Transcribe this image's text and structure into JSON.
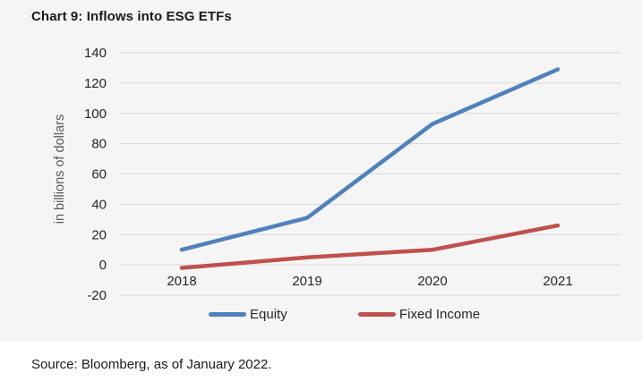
{
  "title": "Chart 9: Inflows into ESG ETFs",
  "source": "Source: Bloomberg, as of January 2022.",
  "colors": {
    "chart_background": "#f5f5f5",
    "page_background": "#ffffff",
    "gridline": "#d9d9d9",
    "tick_text": "#262626",
    "axis_title_text": "#595959",
    "equity_line": "#4F81BD",
    "fixed_income_line": "#C0504D"
  },
  "chart_data": {
    "type": "line",
    "title": "Chart 9: Inflows into ESG ETFs",
    "categories": [
      "2018",
      "2019",
      "2020",
      "2021"
    ],
    "series": [
      {
        "name": "Equity",
        "color": "#4F81BD",
        "values": [
          10,
          31,
          93,
          129
        ]
      },
      {
        "name": "Fixed Income",
        "color": "#C0504D",
        "values": [
          -2,
          5,
          10,
          26
        ]
      }
    ],
    "xlabel": "",
    "ylabel": "in billions of dollars",
    "ylim": [
      -20,
      140
    ],
    "ytick_step": 20,
    "yticks": [
      140,
      120,
      100,
      80,
      60,
      40,
      20,
      0,
      -20
    ],
    "grid": true,
    "legend_position": "bottom"
  }
}
